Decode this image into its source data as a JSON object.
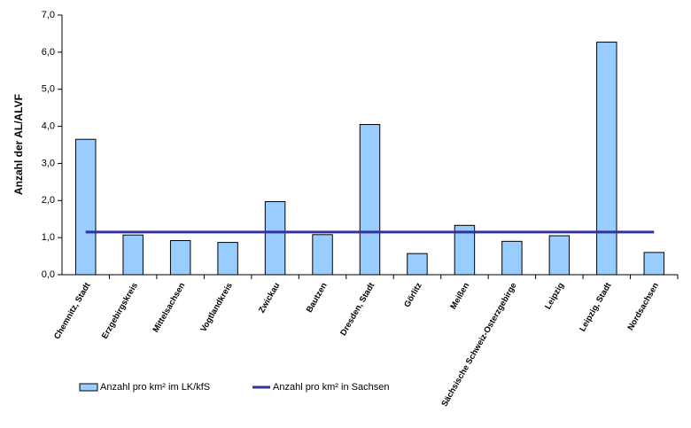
{
  "chart_data": {
    "type": "bar",
    "y_label": "Anzahl der AL/ALVF",
    "categories": [
      "Chemnitz, Stadt",
      "Erzgebirgskreis",
      "Mittelsachsen",
      "Vogtlandkreis",
      "Zwickau",
      "Bautzen",
      "Dresden, Stadt",
      "Görlitz",
      "Meißen",
      "Sächsische Schweiz-Osterzgebirge",
      "Leipzig",
      "Leipzig, Stadt",
      "Nordsachsen"
    ],
    "series": [
      {
        "name": "Anzahl pro km² im LK/kfS",
        "type": "bar",
        "color": "#99ccff",
        "values": [
          3.65,
          1.07,
          0.92,
          0.87,
          1.97,
          1.08,
          4.05,
          0.57,
          1.33,
          0.9,
          1.05,
          6.27,
          0.6
        ]
      },
      {
        "name": "Anzahl pro km² in Sachsen",
        "type": "line",
        "color": "#333399",
        "values": [
          1.15,
          1.15,
          1.15,
          1.15,
          1.15,
          1.15,
          1.15,
          1.15,
          1.15,
          1.15,
          1.15,
          1.15,
          1.15
        ]
      }
    ],
    "ylim": [
      0,
      7
    ],
    "yticks": [
      {
        "value": 0,
        "label": "0,0"
      },
      {
        "value": 1,
        "label": "1,0"
      },
      {
        "value": 2,
        "label": "2,0"
      },
      {
        "value": 3,
        "label": "3,0"
      },
      {
        "value": 4,
        "label": "4,0"
      },
      {
        "value": 5,
        "label": "5,0"
      },
      {
        "value": 6,
        "label": "6,0"
      },
      {
        "value": 7,
        "label": "7,0"
      }
    ],
    "grid": false
  }
}
